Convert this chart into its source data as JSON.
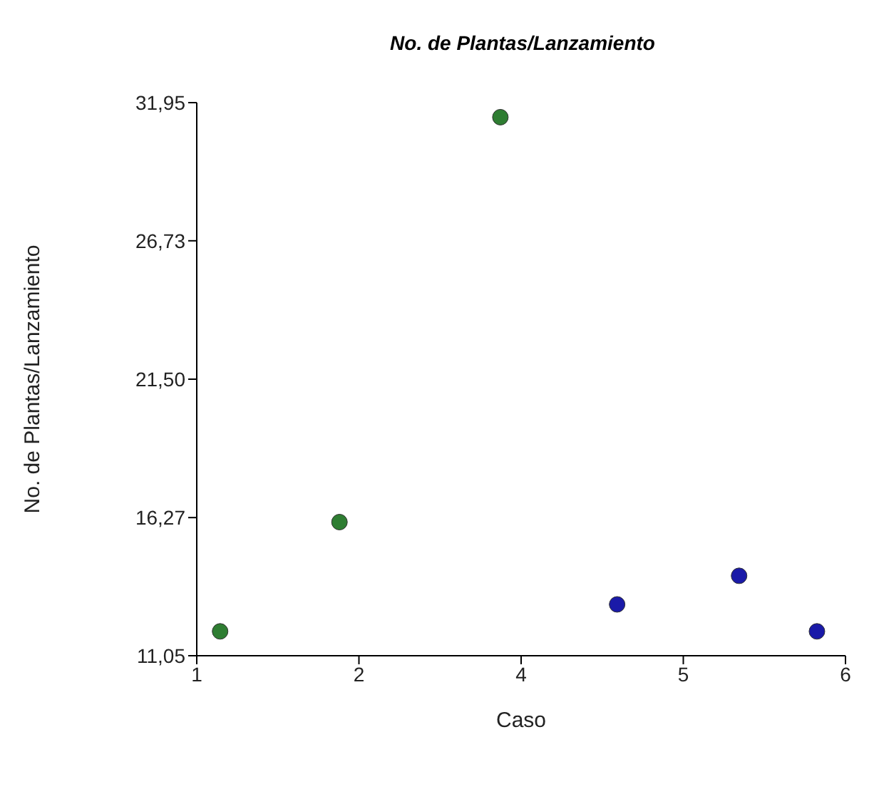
{
  "chart_data": {
    "type": "scatter",
    "title": "No. de Plantas/Lanzamiento",
    "xlabel": "Caso",
    "ylabel": "No. de Plantas/Lanzamiento",
    "series": [
      {
        "color": "#2e7d32",
        "x": [
          1.18,
          2.1,
          3.34
        ],
        "values": [
          11.97,
          16.1,
          31.4
        ]
      },
      {
        "color": "#1a1aa8",
        "x": [
          4.24,
          5.18,
          5.78
        ],
        "values": [
          12.99,
          14.07,
          11.97
        ]
      }
    ],
    "xlim": [
      1,
      6
    ],
    "xticks": [
      1,
      {
        "value": 2.25,
        "label": "2"
      },
      {
        "value": 3.5,
        "label": "4"
      },
      {
        "value": 4.75,
        "label": "5"
      },
      6
    ],
    "ylim": [
      11.05,
      31.95
    ],
    "yticks": [
      {
        "value": 11.05,
        "label": "11,05"
      },
      {
        "value": 16.27,
        "label": "16,27"
      },
      {
        "value": 21.5,
        "label": "21,50"
      },
      {
        "value": 26.73,
        "label": "26,73"
      },
      {
        "value": 31.95,
        "label": "31,95"
      }
    ],
    "grid": false,
    "marker": "circle"
  }
}
